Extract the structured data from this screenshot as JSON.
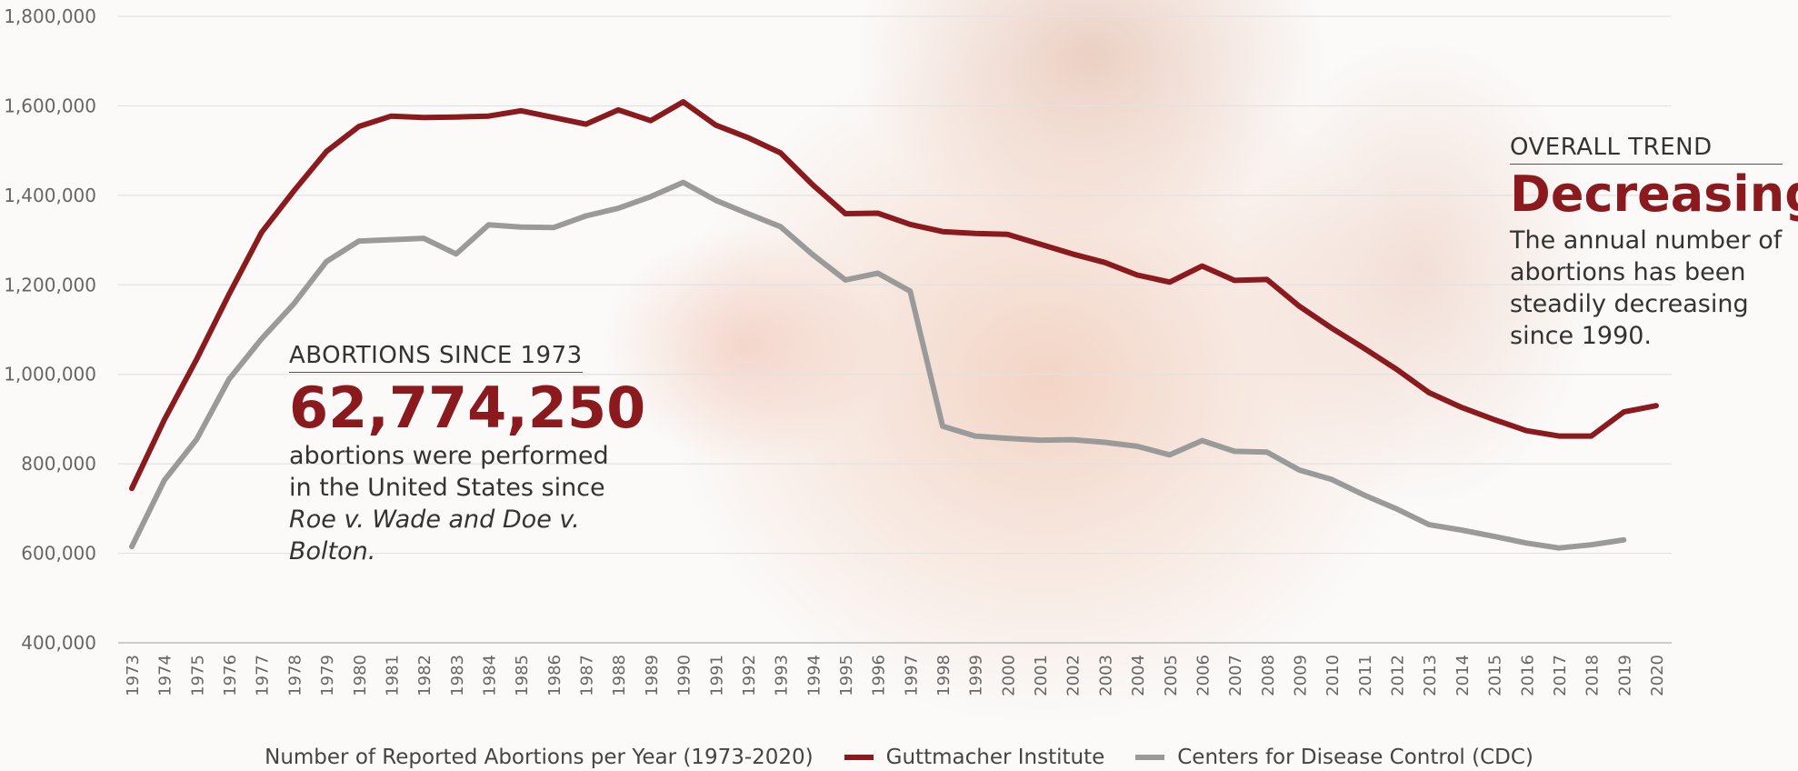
{
  "chart_data": {
    "type": "line",
    "categories": [
      "1973",
      "1974",
      "1975",
      "1976",
      "1977",
      "1978",
      "1979",
      "1980",
      "1981",
      "1982",
      "1983",
      "1984",
      "1985",
      "1986",
      "1987",
      "1988",
      "1989",
      "1990",
      "1991",
      "1992",
      "1993",
      "1994",
      "1995",
      "1996",
      "1997",
      "1998",
      "1999",
      "2000",
      "2001",
      "2002",
      "2003",
      "2004",
      "2005",
      "2006",
      "2007",
      "2008",
      "2009",
      "2010",
      "2011",
      "2012",
      "2013",
      "2014",
      "2015",
      "2016",
      "2017",
      "2018",
      "2019",
      "2020"
    ],
    "series": [
      {
        "name": "Guttmacher Institute",
        "color": "#8b1a1e",
        "values": [
          745000,
          898000,
          1034000,
          1179000,
          1317000,
          1410000,
          1498000,
          1554000,
          1577000,
          1574000,
          1575000,
          1577000,
          1589000,
          1574000,
          1559000,
          1591000,
          1567000,
          1609000,
          1557000,
          1529000,
          1495000,
          1423000,
          1359000,
          1360000,
          1335000,
          1319000,
          1315000,
          1313000,
          1291000,
          1269000,
          1250000,
          1222000,
          1206000,
          1242000,
          1210000,
          1212000,
          1152000,
          1103000,
          1058000,
          1011000,
          959000,
          926000,
          899000,
          874000,
          862000,
          862000,
          916000,
          930000
        ]
      },
      {
        "name": "Centers for Disease Control (CDC)",
        "color": "#9a9a9a",
        "values": [
          615000,
          763000,
          855000,
          989000,
          1079000,
          1158000,
          1252000,
          1298000,
          1301000,
          1304000,
          1269000,
          1334000,
          1329000,
          1328000,
          1354000,
          1371000,
          1397000,
          1429000,
          1389000,
          1359000,
          1330000,
          1267000,
          1211000,
          1226000,
          1186000,
          884000,
          862000,
          857000,
          853000,
          854000,
          848000,
          839000,
          820000,
          852000,
          828000,
          826000,
          786000,
          765000,
          730000,
          699000,
          664000,
          652000,
          638000,
          623000,
          612000,
          619000,
          630000,
          null
        ]
      }
    ],
    "ylim": [
      400000,
      1800000
    ],
    "yticks": [
      {
        "value": 400000,
        "label": "400,000"
      },
      {
        "value": 600000,
        "label": "600,000"
      },
      {
        "value": 800000,
        "label": "800,000"
      },
      {
        "value": 1000000,
        "label": "1,000,000"
      },
      {
        "value": 1200000,
        "label": "1,200,000"
      },
      {
        "value": 1400000,
        "label": "1,400,000"
      },
      {
        "value": 1600000,
        "label": "1,600,000"
      },
      {
        "value": 1800000,
        "label": "1,800,000"
      }
    ],
    "grid": true,
    "legend_title": "Number of Reported Abortions per Year (1973-2020)",
    "annotations": {
      "left": {
        "heading": "ABORTIONS SINCE 1973",
        "number": "62,774,250",
        "text": "abortions were performed in the United States since",
        "italic": "Roe v. Wade and Doe v. Bolton."
      },
      "right": {
        "heading": "OVERALL TREND",
        "headline": "Decreasing",
        "text": "The annual number of abortions has been steadily decreasing since 1990."
      }
    }
  }
}
